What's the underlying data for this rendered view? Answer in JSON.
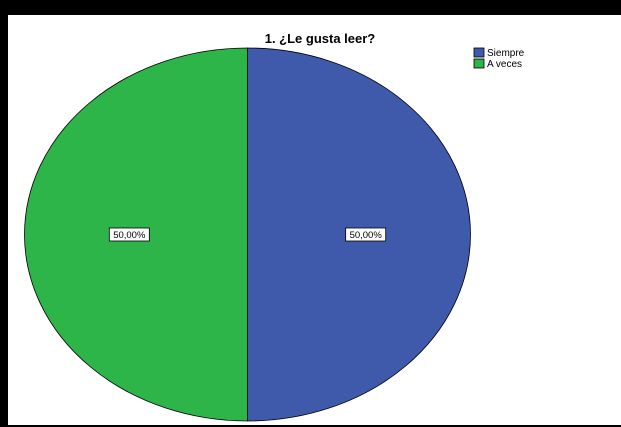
{
  "chart_data": {
    "type": "pie",
    "title": "1. ¿Le gusta leer?",
    "categories": [
      "Siempre",
      "A veces"
    ],
    "values": [
      50,
      50
    ],
    "data_labels": [
      "50,00%",
      "50,00%"
    ],
    "colors": [
      "#3f5aab",
      "#2db54a"
    ],
    "legend_position": "top-right",
    "start_angle": "12 o'clock",
    "direction": "clockwise"
  }
}
